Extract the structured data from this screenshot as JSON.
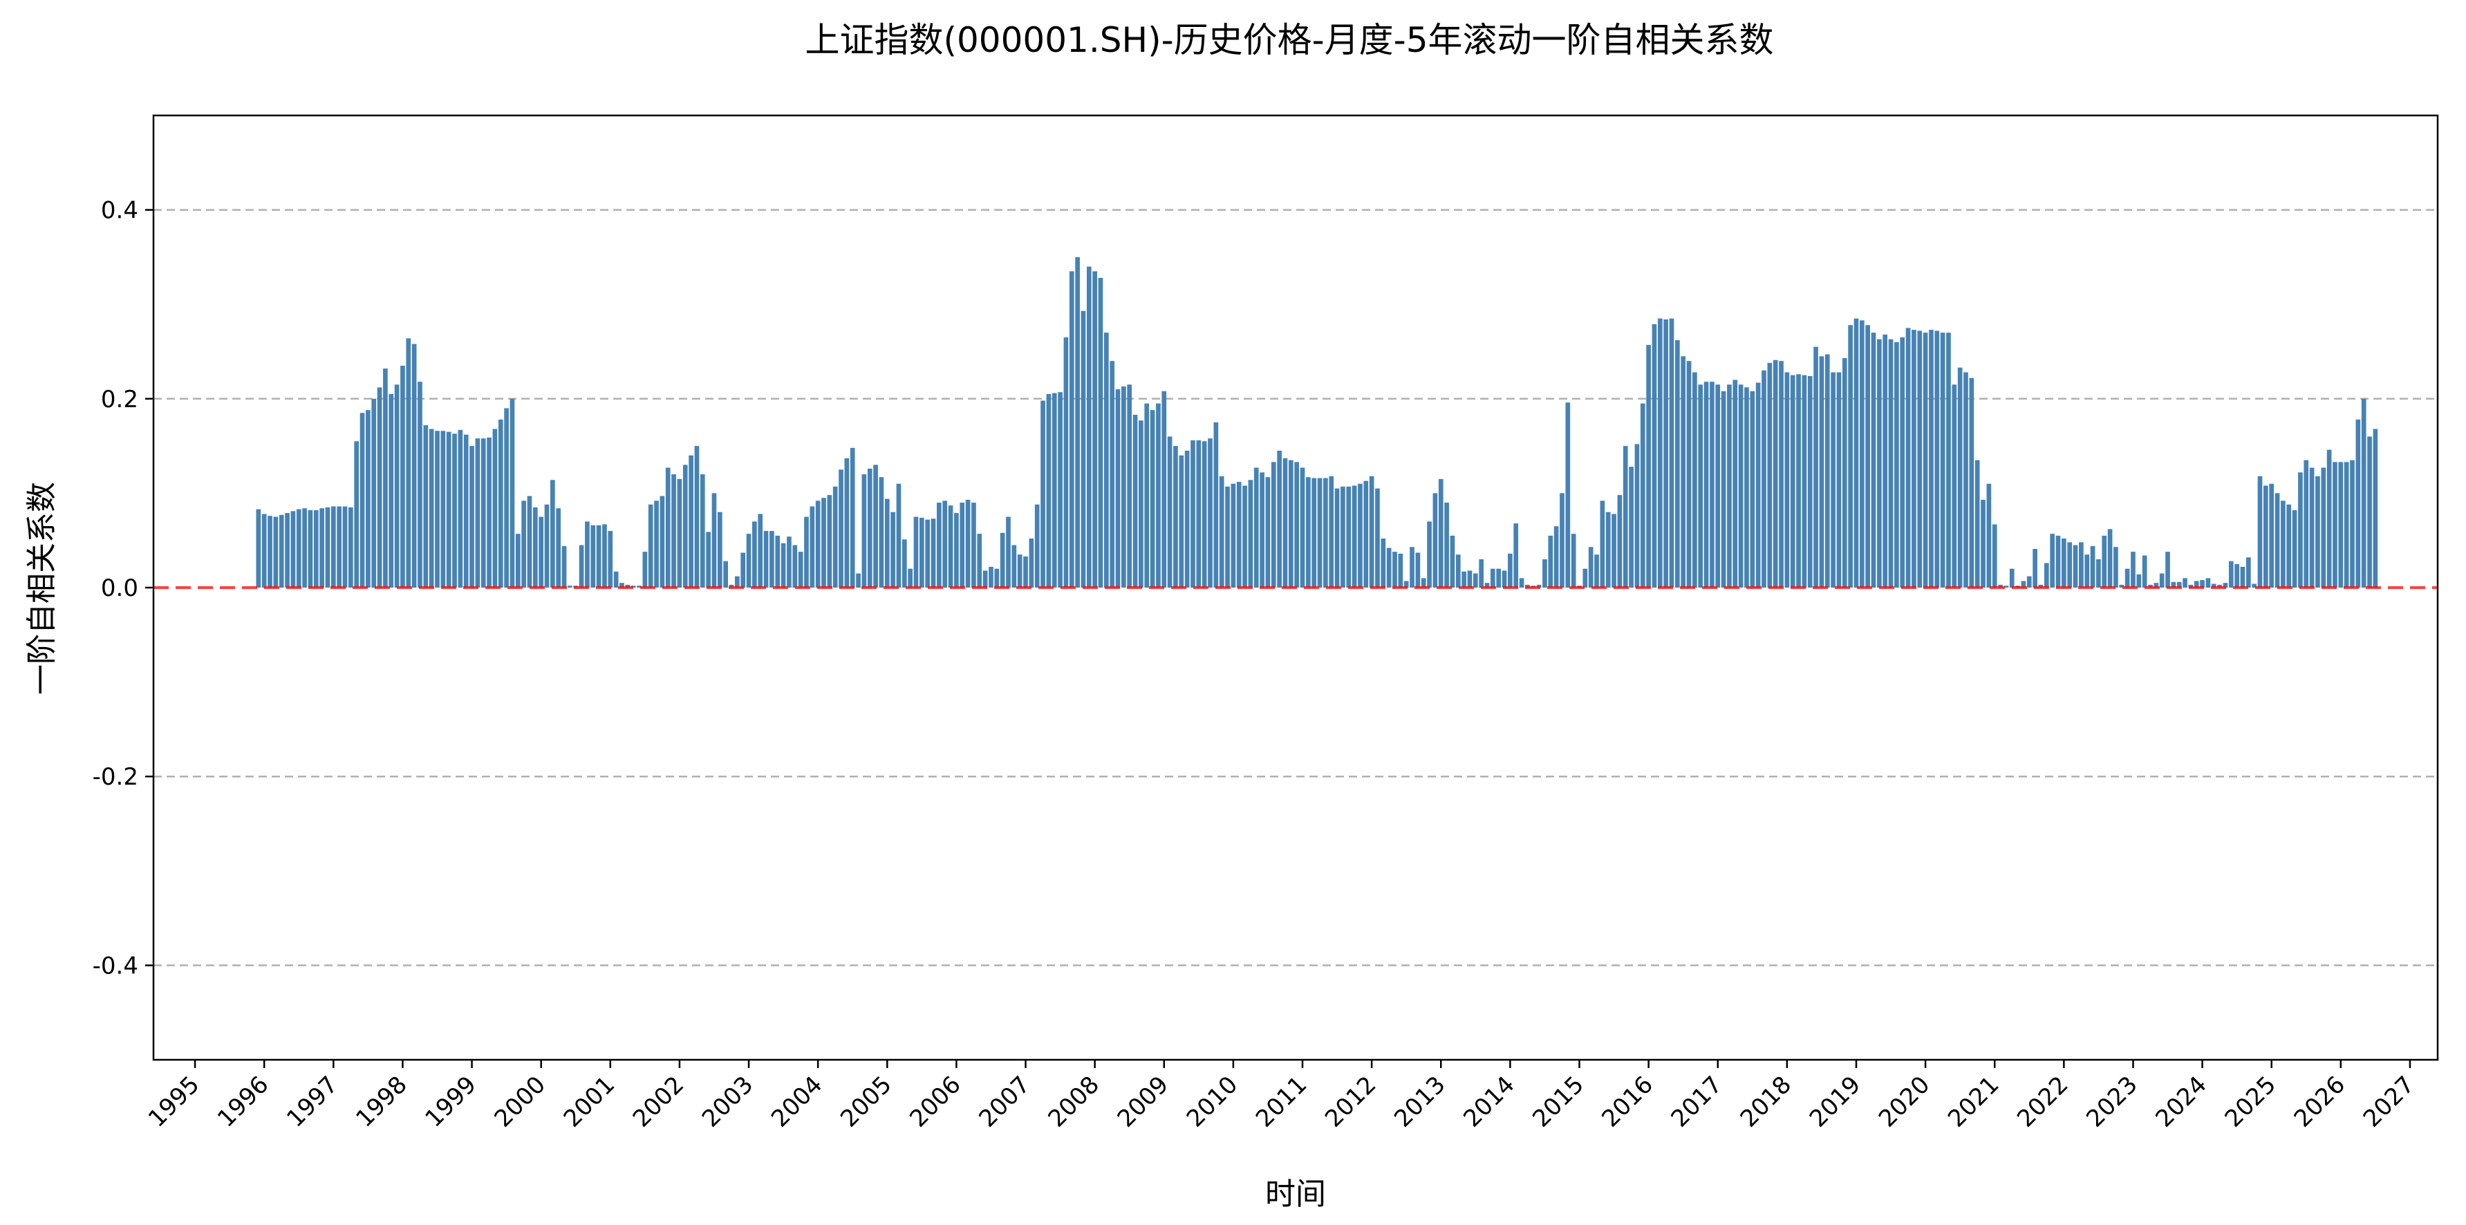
{
  "chart_data": {
    "type": "bar",
    "title": "上证指数(000001.SH)-历史价格-月度-5年滚动一阶自相关系数",
    "xlabel": "时间",
    "ylabel": "一阶自相关系数",
    "ylim": [
      -0.5,
      0.5
    ],
    "yticks": [
      -0.4,
      -0.2,
      0.0,
      0.2,
      0.4
    ],
    "ytick_labels": [
      "-0.4",
      "-0.2",
      "0.0",
      "0.2",
      "0.4"
    ],
    "xlim": [
      1994.4,
      2027.4
    ],
    "xticks": [
      "1995",
      "1996",
      "1997",
      "1998",
      "1999",
      "2000",
      "2001",
      "2002",
      "2003",
      "2004",
      "2005",
      "2006",
      "2007",
      "2008",
      "2009",
      "2010",
      "2011",
      "2012",
      "2013",
      "2014",
      "2015",
      "2016",
      "2017",
      "2018",
      "2019",
      "2020",
      "2021",
      "2022",
      "2023",
      "2024",
      "2025",
      "2026",
      "2027"
    ],
    "grid": "y",
    "reference_line": {
      "y": 0.0,
      "color": "#ff0000",
      "style": "dashed"
    },
    "bar_color": "#4682b4",
    "start": "1995-12",
    "values": [
      0.083,
      0.078,
      0.076,
      0.075,
      0.077,
      0.079,
      0.081,
      0.083,
      0.084,
      0.082,
      0.082,
      0.084,
      0.085,
      0.086,
      0.086,
      0.086,
      0.085,
      0.155,
      0.185,
      0.188,
      0.2,
      0.212,
      0.232,
      0.205,
      0.215,
      0.235,
      0.264,
      0.258,
      0.218,
      0.172,
      0.168,
      0.166,
      0.166,
      0.165,
      0.163,
      0.167,
      0.162,
      0.15,
      0.158,
      0.158,
      0.159,
      0.168,
      0.178,
      0.19,
      0.2,
      0.057,
      0.092,
      0.097,
      0.085,
      0.075,
      0.088,
      0.114,
      0.084,
      0.044,
      0.002,
      0.002,
      0.045,
      0.07,
      0.066,
      0.066,
      0.067,
      0.06,
      0.017,
      0.005,
      0.003,
      0.002,
      0.002,
      0.038,
      0.088,
      0.092,
      0.097,
      0.127,
      0.12,
      0.115,
      0.13,
      0.14,
      0.15,
      0.12,
      0.059,
      0.1,
      0.08,
      0.028,
      0.003,
      0.012,
      0.037,
      0.057,
      0.07,
      0.078,
      0.06,
      0.06,
      0.055,
      0.047,
      0.054,
      0.045,
      0.038,
      0.075,
      0.086,
      0.092,
      0.095,
      0.098,
      0.107,
      0.125,
      0.137,
      0.148,
      0.015,
      0.12,
      0.126,
      0.13,
      0.117,
      0.094,
      0.08,
      0.11,
      0.051,
      0.02,
      0.075,
      0.074,
      0.072,
      0.073,
      0.09,
      0.092,
      0.087,
      0.079,
      0.09,
      0.093,
      0.09,
      0.057,
      0.018,
      0.022,
      0.02,
      0.058,
      0.075,
      0.045,
      0.035,
      0.033,
      0.052,
      0.088,
      0.198,
      0.205,
      0.206,
      0.207,
      0.265,
      0.335,
      0.35,
      0.293,
      0.34,
      0.335,
      0.328,
      0.27,
      0.24,
      0.21,
      0.213,
      0.215,
      0.183,
      0.177,
      0.195,
      0.188,
      0.195,
      0.208,
      0.16,
      0.15,
      0.14,
      0.145,
      0.156,
      0.156,
      0.155,
      0.158,
      0.175,
      0.118,
      0.107,
      0.11,
      0.112,
      0.108,
      0.114,
      0.127,
      0.122,
      0.117,
      0.133,
      0.145,
      0.137,
      0.135,
      0.133,
      0.127,
      0.117,
      0.116,
      0.116,
      0.116,
      0.118,
      0.105,
      0.107,
      0.107,
      0.108,
      0.11,
      0.113,
      0.118,
      0.105,
      0.052,
      0.042,
      0.038,
      0.036,
      0.007,
      0.043,
      0.037,
      0.01,
      0.07,
      0.1,
      0.115,
      0.09,
      0.055,
      0.035,
      0.017,
      0.018,
      0.015,
      0.03,
      0.005,
      0.02,
      0.02,
      0.018,
      0.036,
      0.068,
      0.01,
      0.003,
      0.002,
      0.003,
      0.03,
      0.055,
      0.065,
      0.1,
      0.196,
      0.057,
      0.002,
      0.02,
      0.043,
      0.035,
      0.092,
      0.08,
      0.078,
      0.098,
      0.15,
      0.128,
      0.152,
      0.195,
      0.257,
      0.279,
      0.285,
      0.284,
      0.285,
      0.262,
      0.245,
      0.24,
      0.228,
      0.215,
      0.218,
      0.218,
      0.215,
      0.208,
      0.215,
      0.22,
      0.215,
      0.212,
      0.208,
      0.217,
      0.23,
      0.238,
      0.241,
      0.24,
      0.228,
      0.225,
      0.226,
      0.225,
      0.224,
      0.255,
      0.245,
      0.247,
      0.228,
      0.228,
      0.243,
      0.278,
      0.285,
      0.283,
      0.278,
      0.27,
      0.263,
      0.268,
      0.263,
      0.26,
      0.265,
      0.275,
      0.273,
      0.272,
      0.27,
      0.273,
      0.272,
      0.27,
      0.27,
      0.215,
      0.233,
      0.228,
      0.222,
      0.135,
      0.093,
      0.11,
      0.067,
      0.003,
      0.002,
      0.02,
      0.002,
      0.007,
      0.012,
      0.041,
      0.003,
      0.026,
      0.057,
      0.055,
      0.052,
      0.048,
      0.045,
      0.048,
      0.035,
      0.044,
      0.03,
      0.055,
      0.062,
      0.043,
      0.003,
      0.02,
      0.038,
      0.014,
      0.034,
      0.003,
      0.005,
      0.015,
      0.038,
      0.006,
      0.006,
      0.01,
      0.003,
      0.007,
      0.008,
      0.01,
      0.004,
      0.003,
      0.005,
      0.028,
      0.025,
      0.022,
      0.032,
      0.004,
      0.118,
      0.108,
      0.11,
      0.1,
      0.092,
      0.088,
      0.082,
      0.122,
      0.135,
      0.127,
      0.118,
      0.127,
      0.146,
      0.133,
      0.133,
      0.133,
      0.135,
      0.178,
      0.2,
      0.16,
      0.168
    ]
  }
}
